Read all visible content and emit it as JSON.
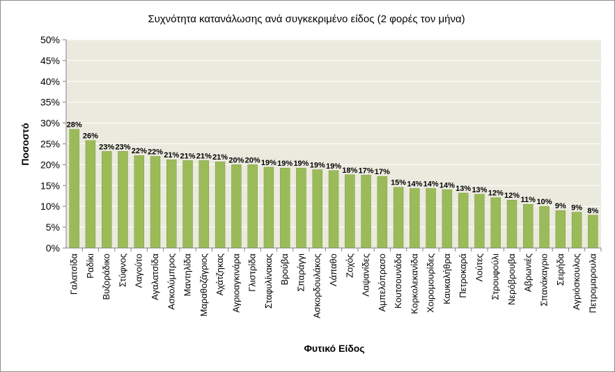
{
  "chart_data": {
    "type": "bar",
    "title": "Συχνότητα κατανάλωσης ανά συγκεκριμένο είδος (2 φορές τον μήνα)",
    "xlabel": "Φυτικό Είδος",
    "ylabel": "Ποσοστό",
    "ylim": [
      0,
      50
    ],
    "ytick_labels": [
      "0%",
      "5%",
      "10%",
      "15%",
      "20%",
      "25%",
      "30%",
      "35%",
      "40%",
      "45%",
      "50%"
    ],
    "grid": true,
    "categories": [
      "Γαλατσίδα",
      "Ραδίκι",
      "Βυζοράδικο",
      "Στύφνος",
      "Λαγούτο",
      "Αγαλατσίδα",
      "Ασκολύμπρος",
      "Μαντηλίδα",
      "Μαραθοζάγριος",
      "Αχάτζηκας",
      "Αγριοαγκινάρα",
      "Γλιστρίδα",
      "Σταφυλίνακας",
      "Βρούβα",
      "Σπαράγγι",
      "Ασκορδουλάκος",
      "Λάπαθο",
      "Ζοχός",
      "Λαψανίδες",
      "Αμπελόπρασο",
      "Κουτσουνάδα",
      "Κορκολεκανίδα",
      "Χοιρομουρίδες",
      "Καυκαλήθρα",
      "Πετροκαρά",
      "Λούτες",
      "Στρουφούλι",
      "Νερόβρουβα",
      "Αβρωνιές",
      "Σπανάκαγριο",
      "Σειρήδα",
      "Αγριόσκουλος",
      "Πετρομαρουλα"
    ],
    "values": [
      28.5,
      25.8,
      23.2,
      23.2,
      22.2,
      22.0,
      21.2,
      21.0,
      21.0,
      20.7,
      20.0,
      20.0,
      19.4,
      19.2,
      19.2,
      18.8,
      18.6,
      17.6,
      17.5,
      17.2,
      14.6,
      14.3,
      14.3,
      14.0,
      13.2,
      12.9,
      12.1,
      11.5,
      10.5,
      10.0,
      9.0,
      8.6,
      7.9
    ],
    "data_labels": [
      "28%",
      "26%",
      "23%",
      "23%",
      "22%",
      "22%",
      "21%",
      "21%",
      "21%",
      "21%",
      "20%",
      "20%",
      "19%",
      "19%",
      "19%",
      "19%",
      "19%",
      "18%",
      "17%",
      "17%",
      "15%",
      "14%",
      "14%",
      "14%",
      "13%",
      "13%",
      "12%",
      "12%",
      "11%",
      "10%",
      "9%",
      "9%",
      "8%"
    ],
    "colors": {
      "plot_bg": "#EBEADE",
      "bar_fill": "#9BBB59",
      "bar_stroke": "#7E9A43",
      "grid": "#FFFFFF",
      "axis": "#808080",
      "text": "#000000"
    }
  }
}
